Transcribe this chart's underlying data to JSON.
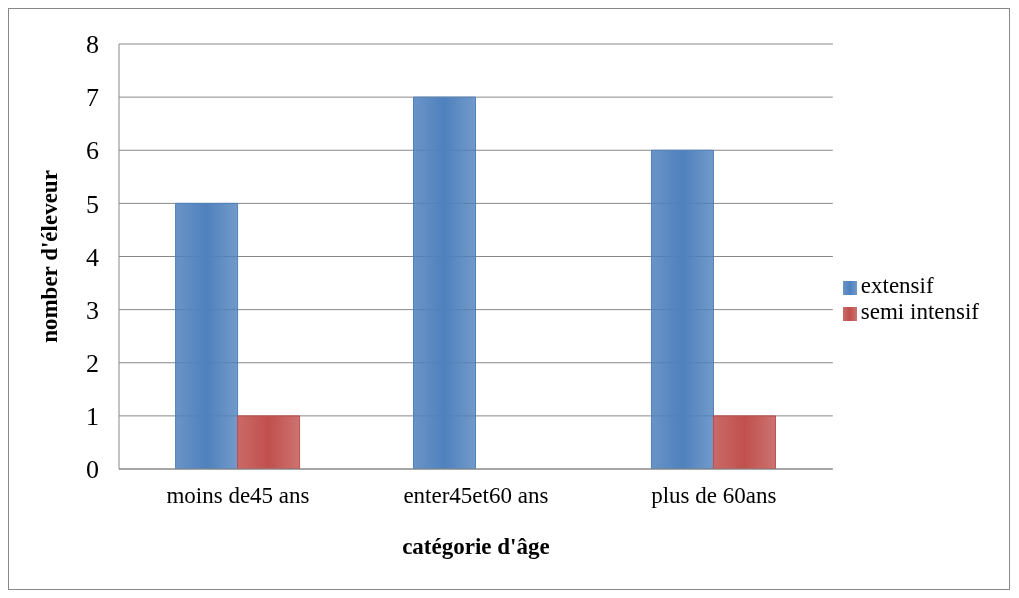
{
  "chart_data": {
    "type": "bar",
    "xlabel": "catégorie d'âge",
    "ylabel": "nomber d'éleveur",
    "categories": [
      "moins de45 ans",
      "enter45et60 ans",
      "plus de 60ans"
    ],
    "series": [
      {
        "name": "extensif",
        "color": "#4f81bd",
        "values": [
          5,
          7,
          6
        ]
      },
      {
        "name": "semi intensif",
        "color": "#c0504d",
        "values": [
          1,
          null,
          1
        ]
      }
    ],
    "ylim": [
      0,
      8
    ],
    "yticks": [
      0,
      1,
      2,
      3,
      4,
      5,
      6,
      7,
      8
    ],
    "grid": "y",
    "legend": "right"
  }
}
